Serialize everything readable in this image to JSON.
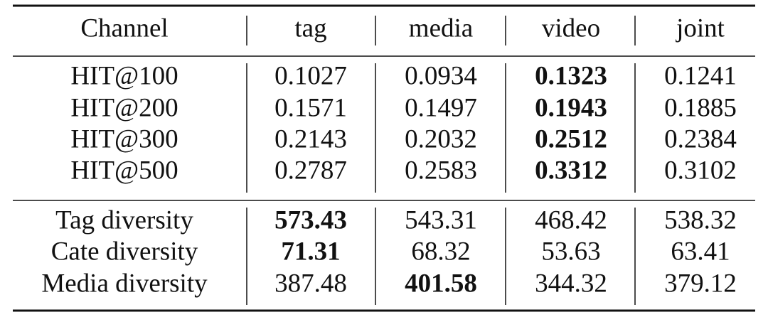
{
  "table": {
    "header": [
      "Channel",
      "tag",
      "media",
      "video",
      "joint"
    ],
    "sections": [
      [
        [
          "HIT@100",
          "0.1027",
          "0.0934",
          "0.1323",
          "0.1241"
        ],
        [
          "HIT@200",
          "0.1571",
          "0.1497",
          "0.1943",
          "0.1885"
        ],
        [
          "HIT@300",
          "0.2143",
          "0.2032",
          "0.2512",
          "0.2384"
        ],
        [
          "HIT@500",
          "0.2787",
          "0.2583",
          "0.3312",
          "0.3102"
        ]
      ],
      [
        [
          "Tag diversity",
          "573.43",
          "543.31",
          "468.42",
          "538.32"
        ],
        [
          "Cate diversity",
          "71.31",
          "68.32",
          "53.63",
          "63.41"
        ],
        [
          "Media diversity",
          "387.48",
          "401.58",
          "344.32",
          "379.12"
        ]
      ]
    ]
  }
}
